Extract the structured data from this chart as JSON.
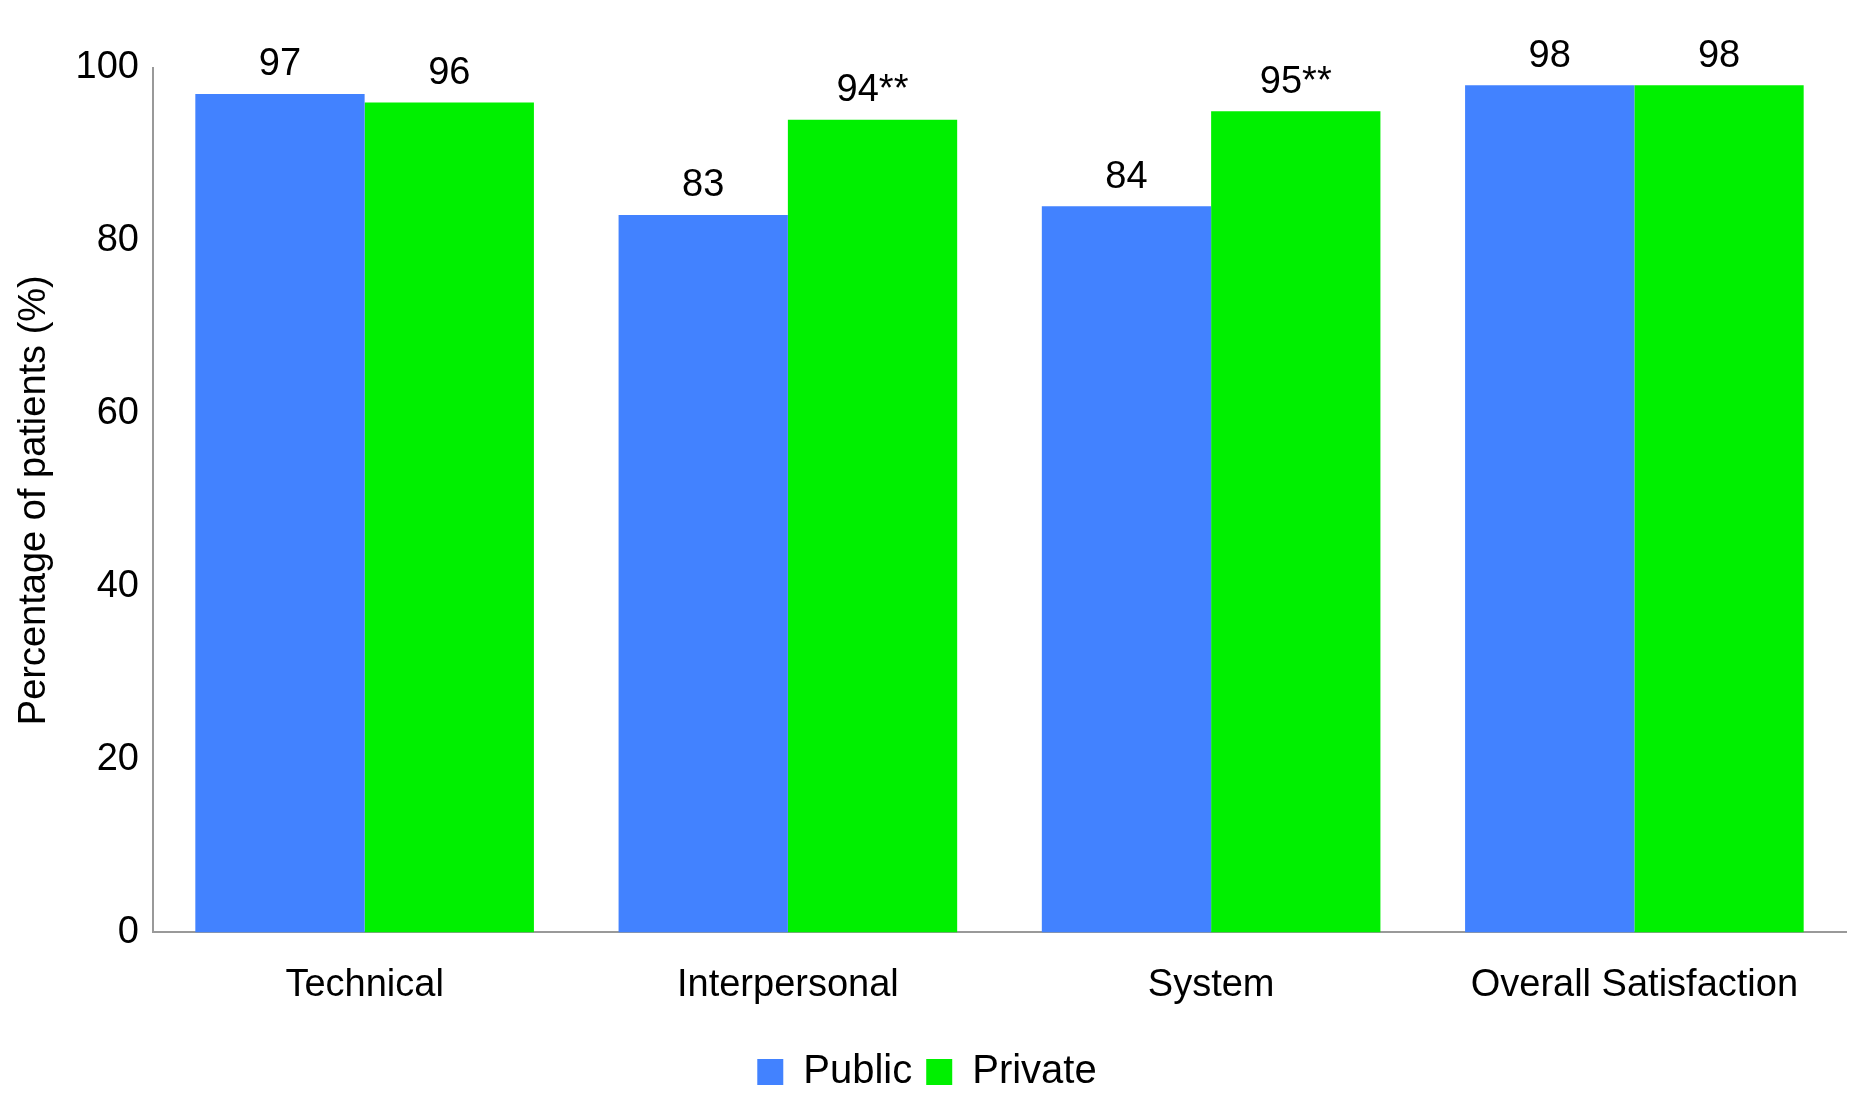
{
  "chart_data": {
    "type": "bar",
    "ylabel": "Percentage of patients (%)",
    "categories": [
      "Technical",
      "Interpersonal",
      "System",
      "Overall Satisfaction"
    ],
    "series": [
      {
        "name": "Public",
        "color": "#4282ff",
        "values": [
          97,
          83,
          84,
          98
        ],
        "value_labels": [
          "97",
          "83",
          "84",
          "98"
        ]
      },
      {
        "name": "Private",
        "color": "#00f000",
        "values": [
          96,
          94,
          95,
          98
        ],
        "value_labels": [
          "96",
          "94**",
          "95**",
          "98"
        ]
      }
    ],
    "ylim": [
      0,
      100
    ],
    "yticks": [
      0,
      20,
      40,
      60,
      80,
      100
    ],
    "grid": false,
    "legend": "bottom"
  }
}
